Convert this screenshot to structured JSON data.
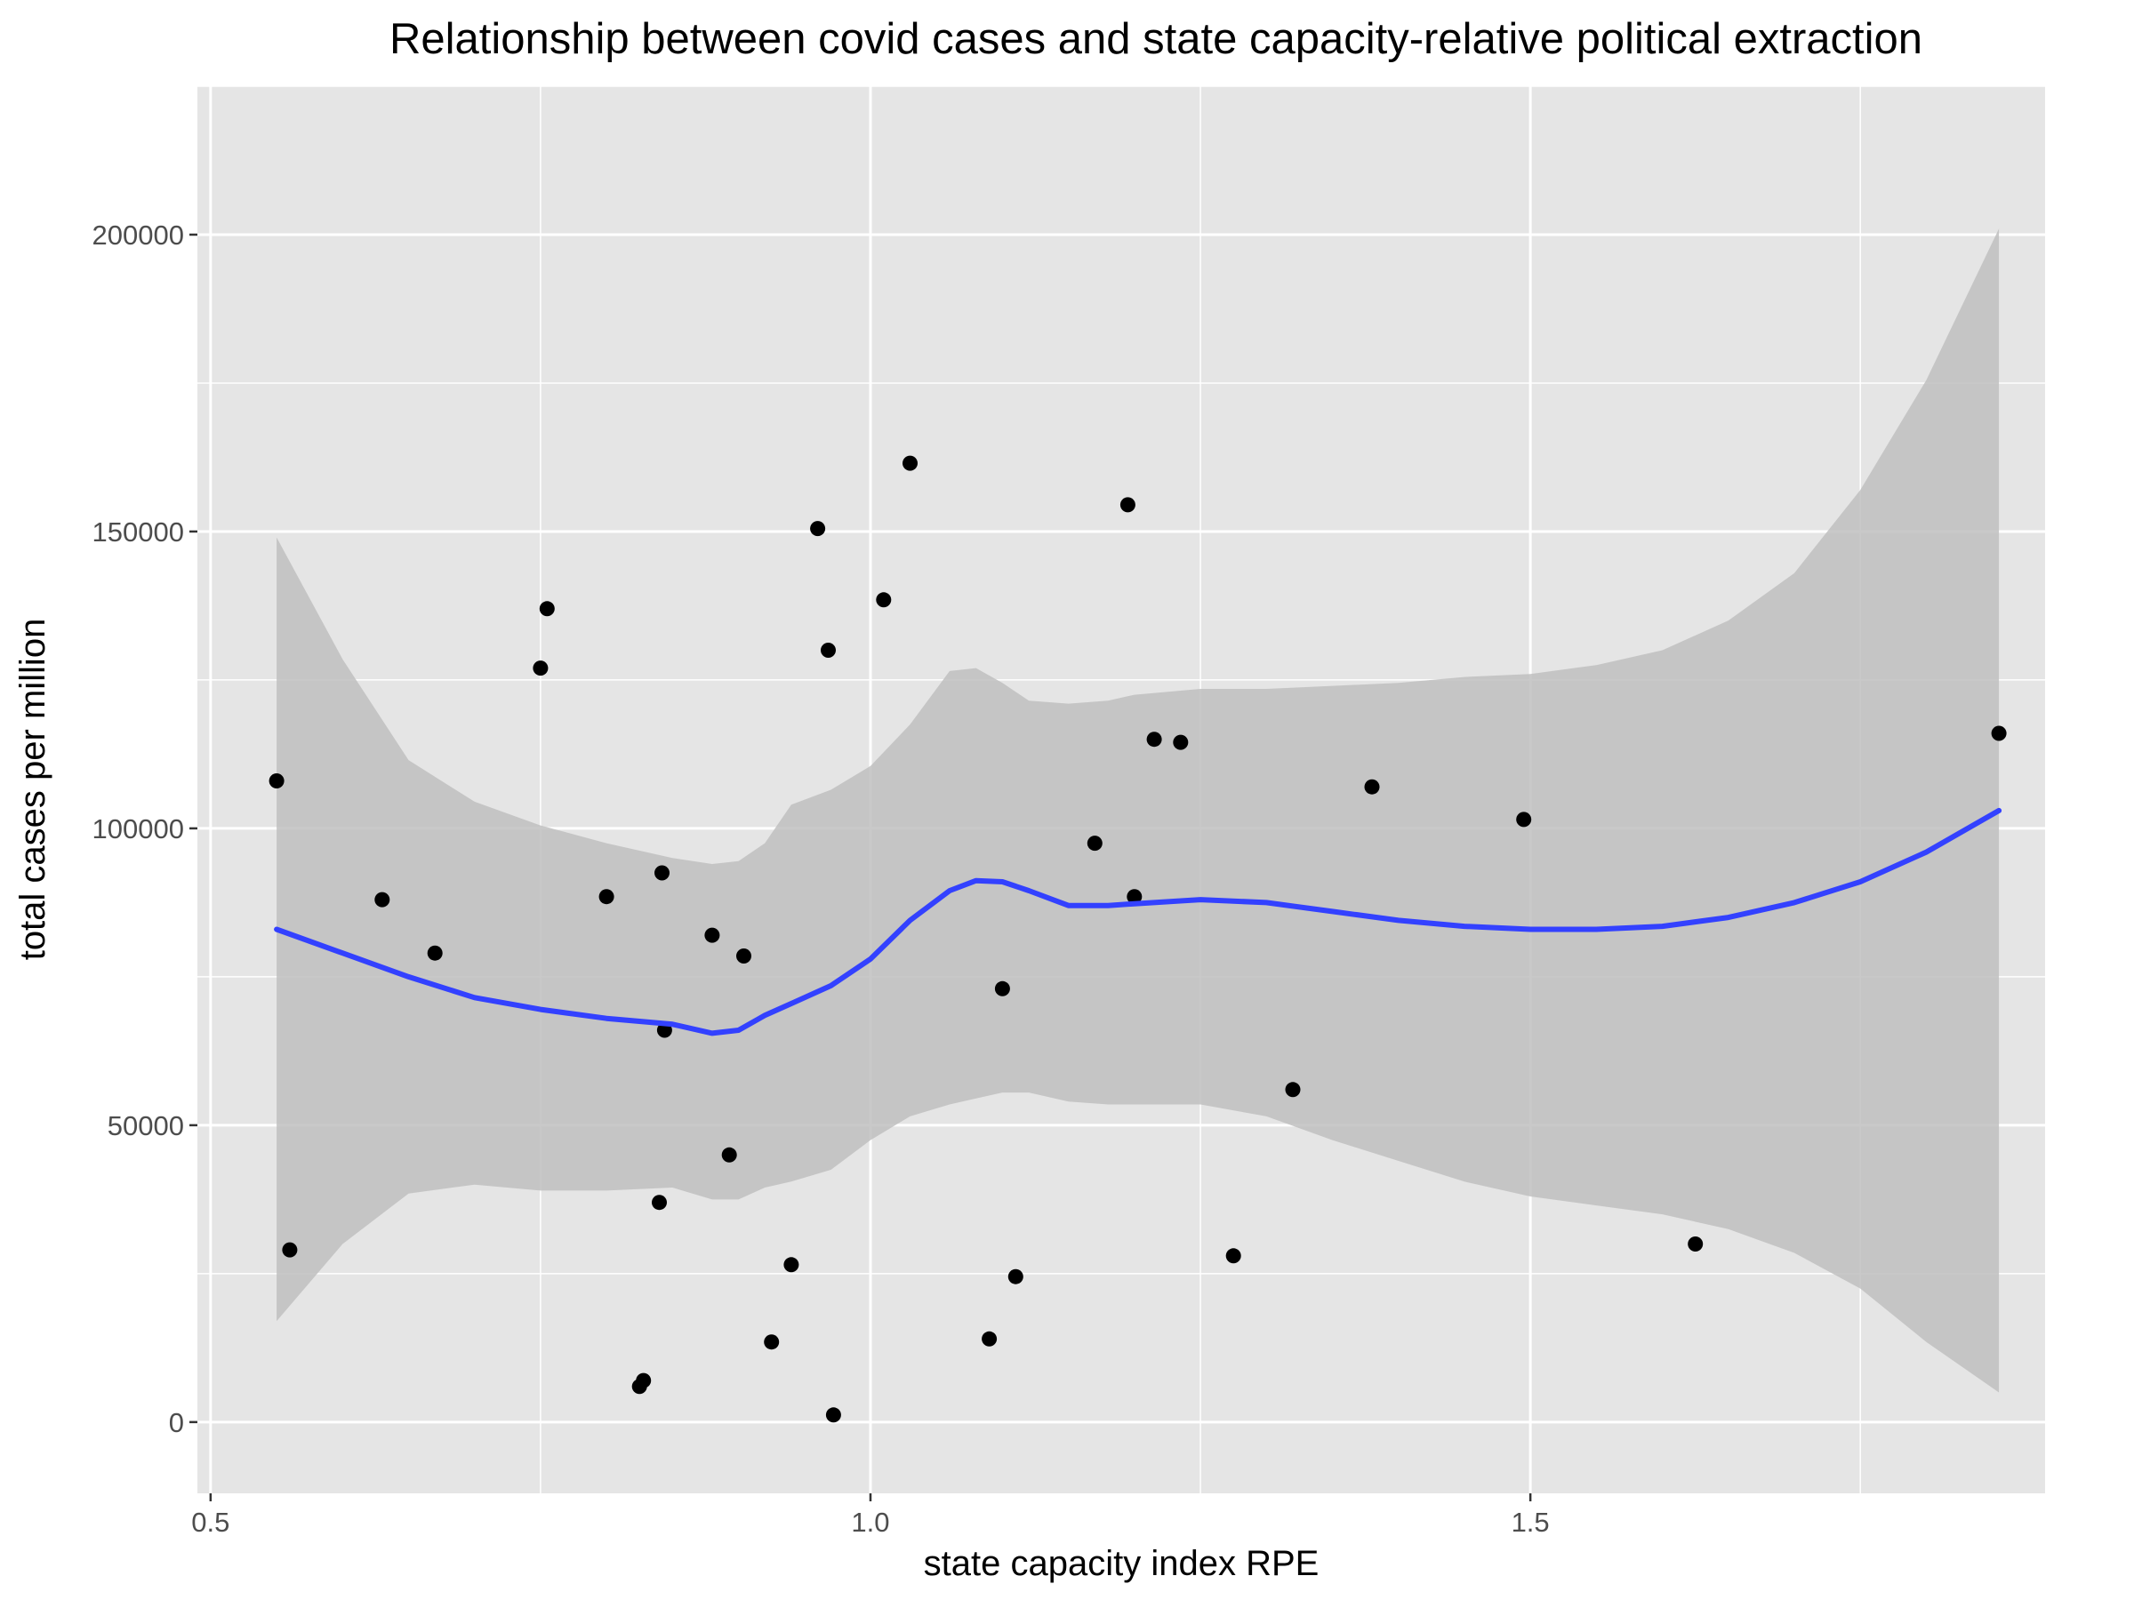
{
  "chart_data": {
    "type": "scatter",
    "title": "Relationship between covid cases and state capacity-relative political extraction",
    "xlabel": "state capacity index RPE",
    "ylabel": "total cases per million",
    "xlim": [
      0.49,
      1.89
    ],
    "ylim": [
      -12000,
      225000
    ],
    "x_ticks": [
      0.5,
      1.0,
      1.5
    ],
    "x_tick_labels": [
      "0.5",
      "1.0",
      "1.5"
    ],
    "y_ticks": [
      0,
      50000,
      100000,
      150000,
      200000
    ],
    "y_tick_labels": [
      "0",
      "50000",
      "100000",
      "150000",
      "200000"
    ],
    "grid": true,
    "colors": {
      "panel": "#e5e5e5",
      "grid": "#ffffff",
      "points": "#000000",
      "smooth_line": "#3341ff",
      "ribbon": "#bfbfbf"
    },
    "points": [
      {
        "x": 0.55,
        "y": 108000
      },
      {
        "x": 0.56,
        "y": 29000
      },
      {
        "x": 0.63,
        "y": 88000
      },
      {
        "x": 0.67,
        "y": 79000
      },
      {
        "x": 0.75,
        "y": 127000
      },
      {
        "x": 0.755,
        "y": 137000
      },
      {
        "x": 0.8,
        "y": 88500
      },
      {
        "x": 0.825,
        "y": 6000
      },
      {
        "x": 0.828,
        "y": 7000
      },
      {
        "x": 0.84,
        "y": 37000
      },
      {
        "x": 0.842,
        "y": 92500
      },
      {
        "x": 0.844,
        "y": 66000
      },
      {
        "x": 0.88,
        "y": 82000
      },
      {
        "x": 0.893,
        "y": 45000
      },
      {
        "x": 0.904,
        "y": 78500
      },
      {
        "x": 0.925,
        "y": 13500
      },
      {
        "x": 0.94,
        "y": 26500
      },
      {
        "x": 0.96,
        "y": 150500
      },
      {
        "x": 0.968,
        "y": 130000
      },
      {
        "x": 0.972,
        "y": 1200
      },
      {
        "x": 1.01,
        "y": 138500
      },
      {
        "x": 1.03,
        "y": 161500
      },
      {
        "x": 1.09,
        "y": 14000
      },
      {
        "x": 1.1,
        "y": 73000
      },
      {
        "x": 1.11,
        "y": 24500
      },
      {
        "x": 1.17,
        "y": 97500
      },
      {
        "x": 1.195,
        "y": 154500
      },
      {
        "x": 1.2,
        "y": 88500
      },
      {
        "x": 1.215,
        "y": 115000
      },
      {
        "x": 1.235,
        "y": 114500
      },
      {
        "x": 1.275,
        "y": 28000
      },
      {
        "x": 1.32,
        "y": 56000
      },
      {
        "x": 1.38,
        "y": 107000
      },
      {
        "x": 1.495,
        "y": 101500
      },
      {
        "x": 1.625,
        "y": 30000
      },
      {
        "x": 1.855,
        "y": 116000
      }
    ],
    "smooth": {
      "x": [
        0.55,
        0.6,
        0.65,
        0.7,
        0.75,
        0.8,
        0.85,
        0.88,
        0.9,
        0.92,
        0.94,
        0.97,
        1.0,
        1.03,
        1.06,
        1.08,
        1.1,
        1.12,
        1.15,
        1.18,
        1.2,
        1.25,
        1.3,
        1.35,
        1.4,
        1.45,
        1.5,
        1.55,
        1.6,
        1.65,
        1.7,
        1.75,
        1.8,
        1.855
      ],
      "y": [
        83000,
        79000,
        75000,
        71500,
        69500,
        68000,
        67000,
        65500,
        66000,
        68500,
        70500,
        73500,
        78000,
        84500,
        89500,
        91200,
        91000,
        89500,
        87000,
        87000,
        87300,
        88000,
        87500,
        86000,
        84500,
        83500,
        83000,
        83000,
        83500,
        85000,
        87500,
        91000,
        96000,
        103000
      ],
      "lower": [
        17000,
        30000,
        38500,
        40000,
        39000,
        39000,
        39500,
        37500,
        37500,
        39500,
        40500,
        42500,
        47500,
        51500,
        53500,
        54500,
        55500,
        55500,
        54000,
        53500,
        53500,
        53500,
        51500,
        47500,
        44000,
        40500,
        38000,
        36500,
        35000,
        32500,
        28500,
        22500,
        13500,
        5000
      ],
      "upper": [
        149000,
        128500,
        111500,
        104500,
        100500,
        97500,
        95000,
        94000,
        94500,
        97500,
        104000,
        106500,
        110500,
        117500,
        126500,
        127000,
        124500,
        121500,
        121000,
        121500,
        122500,
        123500,
        123500,
        124000,
        124500,
        125500,
        126000,
        127500,
        130000,
        135000,
        143000,
        157000,
        175500,
        201000
      ]
    }
  }
}
